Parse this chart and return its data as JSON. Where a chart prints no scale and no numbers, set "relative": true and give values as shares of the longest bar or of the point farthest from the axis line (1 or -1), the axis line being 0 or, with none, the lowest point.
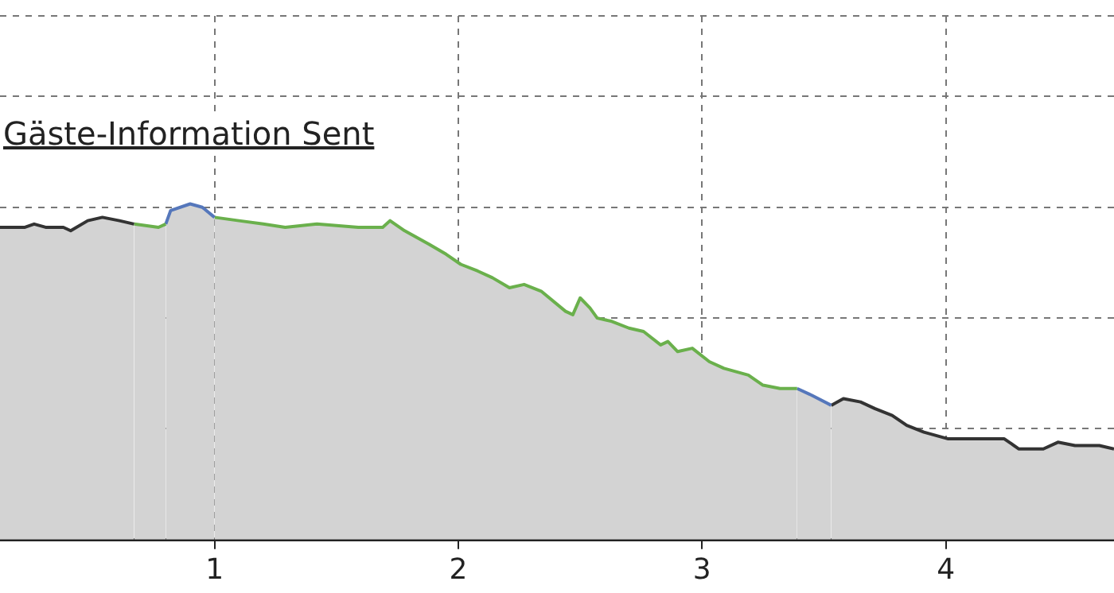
{
  "chart_data": {
    "type": "area",
    "relative": true,
    "annotations": [
      "Gäste-Information Sent"
    ],
    "xlim": [
      0.12,
      4.69
    ],
    "xticks": [
      1,
      2,
      3,
      4
    ],
    "grid": true,
    "legend": false,
    "series": [
      {
        "color": "#333333",
        "x": [
          0.12,
          0.22,
          0.26,
          0.31,
          0.38,
          0.41,
          0.48,
          0.54,
          0.61,
          0.67
        ],
        "values": [
          0.93,
          0.93,
          0.94,
          0.93,
          0.93,
          0.92,
          0.95,
          0.96,
          0.95,
          0.94
        ]
      },
      {
        "color": "#6ab04c",
        "x": [
          0.67,
          0.77,
          0.8
        ],
        "values": [
          0.94,
          0.93,
          0.94
        ]
      },
      {
        "color": "#5577bb",
        "x": [
          0.8,
          0.82,
          0.9,
          0.95,
          1.0
        ],
        "values": [
          0.94,
          0.98,
          1.0,
          0.99,
          0.96
        ]
      },
      {
        "color": "#6ab04c",
        "x": [
          1.0,
          1.1,
          1.2,
          1.29,
          1.42,
          1.59,
          1.69,
          1.72,
          1.78,
          1.88,
          1.95,
          2.01,
          2.08,
          2.14,
          2.21,
          2.27,
          2.34,
          2.44,
          2.47,
          2.5,
          2.54,
          2.57,
          2.63,
          2.7,
          2.76,
          2.83,
          2.86,
          2.9,
          2.96,
          3.03,
          3.09,
          3.19,
          3.25,
          3.32,
          3.39
        ],
        "values": [
          0.96,
          0.95,
          0.94,
          0.93,
          0.94,
          0.93,
          0.93,
          0.95,
          0.92,
          0.88,
          0.85,
          0.82,
          0.8,
          0.78,
          0.75,
          0.76,
          0.74,
          0.68,
          0.67,
          0.72,
          0.69,
          0.66,
          0.65,
          0.63,
          0.62,
          0.58,
          0.59,
          0.56,
          0.57,
          0.53,
          0.51,
          0.49,
          0.46,
          0.45,
          0.45
        ]
      },
      {
        "color": "#5577bb",
        "x": [
          3.39,
          3.45,
          3.53
        ],
        "values": [
          0.45,
          0.43,
          0.4
        ]
      },
      {
        "color": "#333333",
        "x": [
          3.53,
          3.58,
          3.65,
          3.71,
          3.78,
          3.84,
          3.91,
          4.01,
          4.1,
          4.24,
          4.3,
          4.4,
          4.46,
          4.53,
          4.63,
          4.69
        ],
        "values": [
          0.4,
          0.42,
          0.41,
          0.39,
          0.37,
          0.34,
          0.32,
          0.3,
          0.3,
          0.3,
          0.27,
          0.27,
          0.29,
          0.28,
          0.28,
          0.27
        ]
      }
    ]
  }
}
